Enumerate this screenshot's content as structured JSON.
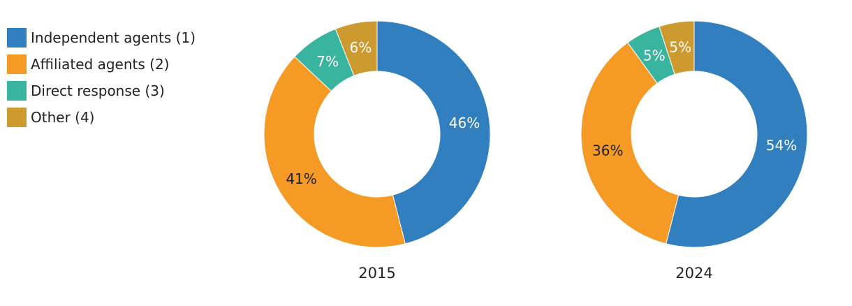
{
  "chart_data": [
    {
      "type": "pie",
      "style": "donut",
      "title": "2015",
      "categories": [
        "Independent agents (1)",
        "Affiliated agents (2)",
        "Direct response (3)",
        "Other (4)"
      ],
      "values": [
        46,
        41,
        7,
        6
      ],
      "value_labels": [
        "46%",
        "41%",
        "7%",
        "6%"
      ]
    },
    {
      "type": "pie",
      "style": "donut",
      "title": "2024",
      "categories": [
        "Independent agents (1)",
        "Affiliated agents (2)",
        "Direct response (3)",
        "Other (4)"
      ],
      "values": [
        54,
        36,
        5,
        5
      ],
      "value_labels": [
        "54%",
        "36%",
        "5%",
        "5%"
      ]
    }
  ],
  "legend": {
    "placement": "top-left",
    "items": [
      {
        "label": "Independent agents (1)",
        "color": "#327fc0"
      },
      {
        "label": "Affiliated agents (2)",
        "color": "#f59a24"
      },
      {
        "label": "Direct response (3)",
        "color": "#39b59f"
      },
      {
        "label": "Other (4)",
        "color": "#cc9a2e"
      }
    ]
  },
  "label_colors": [
    "#ffffff",
    "#222222",
    "#ffffff",
    "#ffffff"
  ]
}
